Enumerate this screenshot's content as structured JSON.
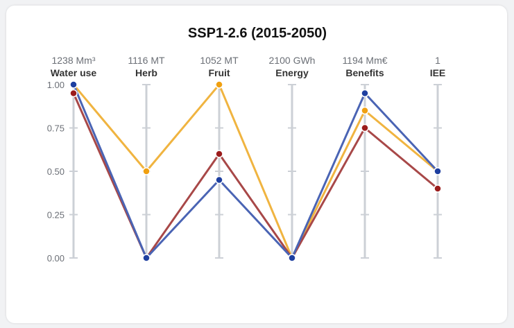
{
  "chart_data": {
    "type": "parallel-coordinates",
    "title": "SSP1-2.6 (2015-2050)",
    "axes": [
      {
        "name": "Water use",
        "max_label": "1238 Mm³"
      },
      {
        "name": "Herb",
        "max_label": "1116 MT"
      },
      {
        "name": "Fruit",
        "max_label": "1052 MT"
      },
      {
        "name": "Energy",
        "max_label": "2100 GWh"
      },
      {
        "name": "Benefits",
        "max_label": "1194 Mm€"
      },
      {
        "name": "IEE",
        "max_label": "1"
      }
    ],
    "ylim": [
      0,
      1
    ],
    "y_ticks": [
      "0.00",
      "0.25",
      "0.50",
      "0.75",
      "1.00"
    ],
    "series": [
      {
        "color": "#F0B440",
        "point_color": "#F0A010",
        "values": [
          1.0,
          0.5,
          1.0,
          0.0,
          0.85,
          0.5
        ]
      },
      {
        "color": "#A84848",
        "point_color": "#9B1C1C",
        "values": [
          0.95,
          0.0,
          0.6,
          0.0,
          0.75,
          0.4
        ]
      },
      {
        "color": "#4A64B4",
        "point_color": "#1E3FA0",
        "values": [
          1.0,
          0.0,
          0.45,
          0.0,
          0.95,
          0.5
        ]
      }
    ],
    "grid": false,
    "legend": "none"
  }
}
